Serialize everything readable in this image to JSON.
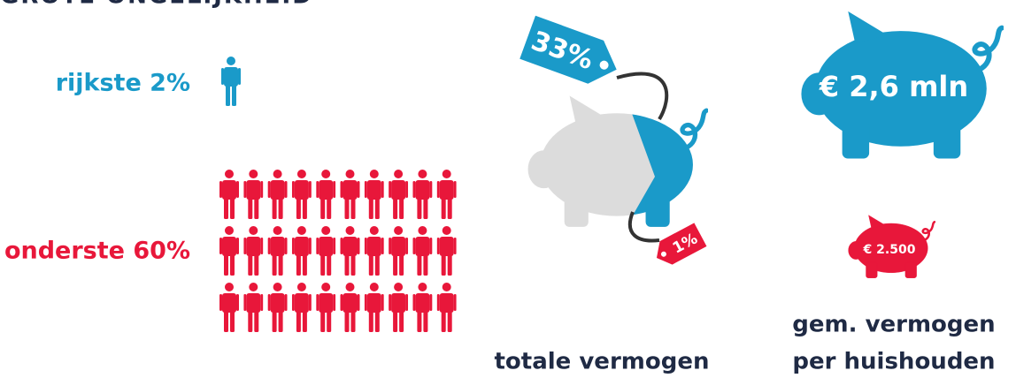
{
  "header": {
    "title": "GROTE ONGELIJKHEID"
  },
  "groups": [
    {
      "label": "rijkste 2%",
      "share_label": "33%",
      "average_label": "€ 2,6 mln"
    },
    {
      "label": "onderste 60%",
      "share_label": "1%",
      "average_label": "€ 2.500"
    }
  ],
  "captions": {
    "total": "totale vermogen",
    "average": [
      "gem. vermogen",
      "per huishouden"
    ]
  }
}
